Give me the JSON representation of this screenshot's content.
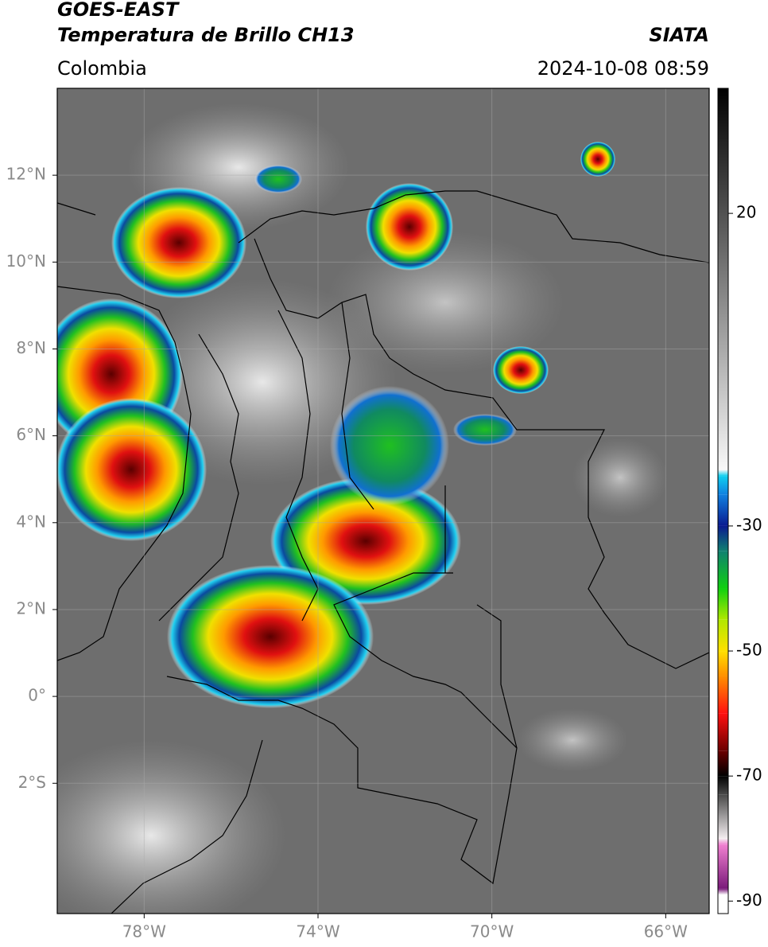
{
  "chart_data": {
    "type": "map",
    "title": "GOES-EAST",
    "subtitle": "Temperatura de Brillo CH13",
    "source": "SIATA",
    "region": "Colombia",
    "timestamp": "2024-10-08 08:59",
    "xlim": [
      -80,
      -65
    ],
    "ylim": [
      -5,
      14
    ],
    "xticks": [
      {
        "value": -78,
        "label": "78°W"
      },
      {
        "value": -74,
        "label": "74°W"
      },
      {
        "value": -70,
        "label": "70°W"
      },
      {
        "value": -66,
        "label": "66°W"
      }
    ],
    "yticks": [
      {
        "value": 12,
        "label": "12°N"
      },
      {
        "value": 10,
        "label": "10°N"
      },
      {
        "value": 8,
        "label": "8°N"
      },
      {
        "value": 6,
        "label": "6°N"
      },
      {
        "value": 4,
        "label": "4°N"
      },
      {
        "value": 2,
        "label": "2°N"
      },
      {
        "value": 0,
        "label": "0°"
      },
      {
        "value": -2,
        "label": "2°S"
      }
    ],
    "grid": true,
    "colorbar": {
      "lim": [
        -92,
        40
      ],
      "ticks": [
        20,
        -30,
        -50,
        -70,
        -90
      ],
      "colormap": [
        {
          "value": -92,
          "color": "#ffffff"
        },
        {
          "value": -89,
          "color": "#ffffff"
        },
        {
          "value": -88,
          "color": "#7a1a7a"
        },
        {
          "value": -81,
          "color": "#f080d0"
        },
        {
          "value": -80,
          "color": "#f4eef0"
        },
        {
          "value": -73,
          "color": "#4a4a4a"
        },
        {
          "value": -70,
          "color": "#000000"
        },
        {
          "value": -66,
          "color": "#6a0000"
        },
        {
          "value": -60,
          "color": "#ff1010"
        },
        {
          "value": -54,
          "color": "#ff9000"
        },
        {
          "value": -50,
          "color": "#ffe000"
        },
        {
          "value": -45,
          "color": "#b0e800"
        },
        {
          "value": -40,
          "color": "#10d010"
        },
        {
          "value": -34,
          "color": "#108070"
        },
        {
          "value": -30,
          "color": "#0a1a90"
        },
        {
          "value": -25,
          "color": "#1080e0"
        },
        {
          "value": -22,
          "color": "#10d0f0"
        },
        {
          "value": -21,
          "color": "#f8f8f8"
        },
        {
          "value": 40,
          "color": "#000000"
        }
      ]
    }
  }
}
